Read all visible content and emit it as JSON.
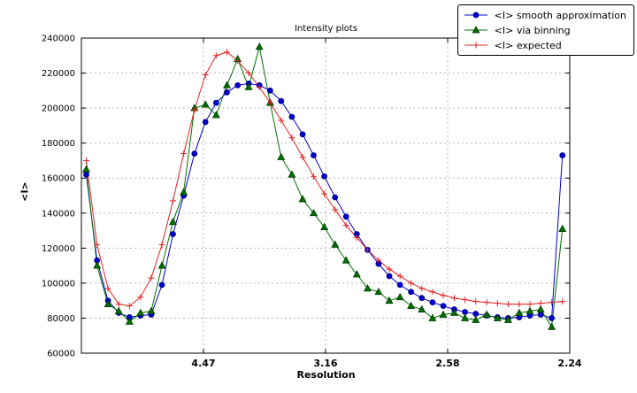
{
  "chart_data": {
    "type": "line",
    "title": "Intensity plots",
    "xlabel": "Resolution",
    "ylabel": "<I>",
    "grid": true,
    "legend_position": "upper right",
    "xlim": [
      0.0,
      0.2
    ],
    "ylim": [
      60000,
      240000
    ],
    "x_axis_note": "x axis is linear in 1/d^2; tick labels show resolution d in Angstrom",
    "x_ticks": [
      {
        "pos": 0.05,
        "label": "4.47"
      },
      {
        "pos": 0.1,
        "label": "3.16"
      },
      {
        "pos": 0.15,
        "label": "2.58"
      },
      {
        "pos": 0.2,
        "label": "2.24"
      }
    ],
    "y_ticks": [
      60000,
      80000,
      100000,
      120000,
      140000,
      160000,
      180000,
      200000,
      220000,
      240000
    ],
    "x": [
      0.002,
      0.0064,
      0.0109,
      0.0153,
      0.0197,
      0.0242,
      0.0286,
      0.033,
      0.0375,
      0.0419,
      0.0463,
      0.0508,
      0.0552,
      0.0596,
      0.064,
      0.0685,
      0.0729,
      0.0773,
      0.0818,
      0.0862,
      0.0906,
      0.0951,
      0.0995,
      0.1039,
      0.1084,
      0.1128,
      0.1172,
      0.1217,
      0.1261,
      0.1305,
      0.135,
      0.1394,
      0.1438,
      0.1482,
      0.1527,
      0.1571,
      0.1615,
      0.166,
      0.1704,
      0.1748,
      0.1793,
      0.1837,
      0.1881,
      0.1926,
      0.197
    ],
    "series": [
      {
        "name": "<I> smooth approximation",
        "color": "#0000cc",
        "edge": "#000080",
        "marker": "circle",
        "values": [
          162000,
          113000,
          90000,
          83000,
          80500,
          81500,
          82000,
          99000,
          128000,
          150000,
          174000,
          192000,
          203000,
          209000,
          213000,
          214000,
          213000,
          210000,
          204000,
          195000,
          185000,
          173000,
          161000,
          149000,
          138000,
          128000,
          119000,
          111000,
          104000,
          99000,
          95000,
          91500,
          89000,
          87000,
          85000,
          83500,
          82500,
          81500,
          80500,
          80000,
          80500,
          81500,
          82000,
          80000,
          173000
        ]
      },
      {
        "name": "<I> via binning",
        "color": "#007000",
        "edge": "#003800",
        "marker": "triangle",
        "values": [
          165000,
          110000,
          88000,
          84000,
          78000,
          83000,
          84000,
          110000,
          135000,
          152000,
          200000,
          202000,
          196000,
          213000,
          228000,
          212000,
          235000,
          203000,
          172000,
          162000,
          148000,
          140000,
          132000,
          122000,
          113000,
          105000,
          97000,
          95000,
          90000,
          92000,
          87000,
          85000,
          80000,
          82000,
          83000,
          80000,
          79000,
          82000,
          80000,
          79000,
          83000,
          84000,
          85000,
          75000,
          131000
        ]
      },
      {
        "name": "<I> expected",
        "color": "#e32222",
        "edge": "#e32222",
        "marker": "plus",
        "values": [
          170000,
          122000,
          97000,
          88000,
          87000,
          92000,
          103000,
          122000,
          147000,
          174000,
          199000,
          219000,
          230000,
          232000,
          227000,
          220000,
          212000,
          203000,
          193000,
          183000,
          172000,
          161000,
          151000,
          142000,
          133000,
          126000,
          119000,
          113000,
          108000,
          104000,
          100000,
          97000,
          95000,
          93000,
          91500,
          90500,
          89500,
          89000,
          88500,
          88000,
          88000,
          88000,
          88500,
          89000,
          89500
        ]
      }
    ]
  }
}
